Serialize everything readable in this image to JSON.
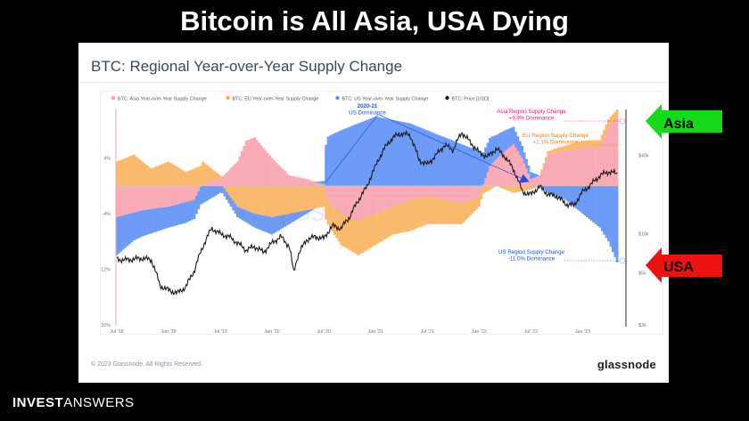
{
  "headline": "Bitcoin is All Asia, USA Dying",
  "card": {
    "title": "BTC: Regional Year-over-Year Supply Change",
    "copyright": "© 2023 Glassnode. All Rights Reserved.",
    "logo": "glassnode",
    "watermark": "glassnode"
  },
  "brand": {
    "part1": "INVEST",
    "part2": "ANSWERS"
  },
  "callouts": {
    "asia": "Asia",
    "usa": "USA"
  },
  "colors": {
    "asia": "#f7a1ad",
    "eu": "#f9b15b",
    "us": "#5b8ef5",
    "price": "#1a1a1a",
    "asia_text": "#e0157a",
    "eu_text": "#f07e0b",
    "us_text": "#2250d8",
    "arrow_green": "#16d91a",
    "arrow_red": "#ef1010"
  },
  "chart_data": {
    "type": "area",
    "legend": [
      {
        "name": "BTC: Asia Year-over-Year Supply Change",
        "color": "#f7a1ad"
      },
      {
        "name": "BTC: EU Year-over-Year Supply Change",
        "color": "#f9b15b"
      },
      {
        "name": "BTC: US Year-over-Year Supply Change",
        "color": "#5b8ef5"
      },
      {
        "name": "BTC: Price [USD]",
        "color": "#1a1a1a"
      }
    ],
    "x_ticks": [
      "Jul '18",
      "Jan '19",
      "Jul '19",
      "Jan '20",
      "Jul '20",
      "Jan '21",
      "Jul '21",
      "Jan '22",
      "Jul '22",
      "Jan '23"
    ],
    "x_tick_t": [
      0,
      6,
      12,
      18,
      24,
      30,
      36,
      42,
      48,
      54
    ],
    "x_range": [
      -0.2,
      58.5
    ],
    "y_left_ticks": [
      4,
      -4,
      -12,
      -20
    ],
    "y_left_tick_labels": [
      "4%",
      "-4%",
      "-12%",
      "-20%"
    ],
    "y_left_range": [
      -20,
      11
    ],
    "y_right_ticks": [
      40000,
      10000,
      5000,
      2000
    ],
    "y_right_tick_labels": [
      "$40k",
      "$10k",
      "$5k",
      "$2k"
    ],
    "y_right_range": [
      2000,
      90000
    ],
    "y_right_scale": "log",
    "series": [
      {
        "name": "BTC: Asia Year-over-Year Supply Change",
        "points": [
          [
            0,
            -4.5
          ],
          [
            3,
            -3.5
          ],
          [
            6,
            -3
          ],
          [
            9,
            -2
          ],
          [
            10,
            0.5
          ],
          [
            12,
            1
          ],
          [
            14,
            3.5
          ],
          [
            15,
            6.5
          ],
          [
            16,
            7
          ],
          [
            17,
            5.5
          ],
          [
            18,
            4
          ],
          [
            20,
            1.5
          ],
          [
            22,
            1
          ],
          [
            24,
            0.2
          ],
          [
            24.3,
            -2
          ],
          [
            26,
            -4
          ],
          [
            28,
            -5
          ],
          [
            30,
            -4
          ],
          [
            32,
            -3
          ],
          [
            34,
            -2
          ],
          [
            36,
            -1.5
          ],
          [
            38,
            -2
          ],
          [
            40,
            -2.5
          ],
          [
            42,
            -1.5
          ],
          [
            43.3,
            3
          ],
          [
            45,
            5
          ],
          [
            46,
            6
          ],
          [
            47,
            4
          ],
          [
            48,
            1
          ],
          [
            49,
            1.5
          ],
          [
            50,
            4.5
          ],
          [
            52,
            5
          ],
          [
            54,
            5.5
          ],
          [
            56,
            5.5
          ],
          [
            57,
            8.5
          ],
          [
            58,
            9.9
          ]
        ]
      },
      {
        "name": "BTC: EU Year-over-Year Supply Change",
        "points": [
          [
            0,
            3.5
          ],
          [
            2,
            4.5
          ],
          [
            4,
            2.5
          ],
          [
            6,
            3.5
          ],
          [
            8,
            2
          ],
          [
            10,
            3
          ],
          [
            12,
            0.5
          ],
          [
            14,
            -3
          ],
          [
            16,
            -4
          ],
          [
            18,
            -4.5
          ],
          [
            20,
            -4
          ],
          [
            22,
            -3.5
          ],
          [
            24,
            -3
          ],
          [
            26,
            -4.5
          ],
          [
            28,
            -5
          ],
          [
            30,
            -4.5
          ],
          [
            32,
            -4
          ],
          [
            34,
            -4.5
          ],
          [
            36,
            -4
          ],
          [
            38,
            -3.5
          ],
          [
            40,
            -3
          ],
          [
            42,
            -1.5
          ],
          [
            44,
            0
          ],
          [
            46,
            -1
          ],
          [
            48,
            -0.5
          ],
          [
            50,
            0.5
          ],
          [
            52,
            0.8
          ],
          [
            54,
            1
          ],
          [
            56,
            1.1
          ],
          [
            58,
            1.1
          ]
        ]
      },
      {
        "name": "BTC: US Year-over-Year Supply Change",
        "points": [
          [
            0,
            -5.5
          ],
          [
            2,
            -4
          ],
          [
            4,
            -3.5
          ],
          [
            6,
            -3
          ],
          [
            8,
            -3
          ],
          [
            10,
            -2.5
          ],
          [
            12,
            -1
          ],
          [
            14,
            -1.5
          ],
          [
            16,
            -2
          ],
          [
            18,
            -2.5
          ],
          [
            20,
            -1.5
          ],
          [
            22,
            -0.5
          ],
          [
            24,
            0.5
          ],
          [
            24.3,
            7
          ],
          [
            26,
            8
          ],
          [
            28,
            9
          ],
          [
            30,
            10
          ],
          [
            32,
            9.5
          ],
          [
            34,
            9
          ],
          [
            36,
            8
          ],
          [
            38,
            7
          ],
          [
            40,
            6
          ],
          [
            42,
            5
          ],
          [
            44,
            3.5
          ],
          [
            46,
            2.5
          ],
          [
            48,
            1
          ],
          [
            50,
            -1
          ],
          [
            52,
            -2
          ],
          [
            54,
            -4
          ],
          [
            56,
            -6
          ],
          [
            57,
            -8
          ],
          [
            58,
            -11
          ]
        ]
      },
      {
        "name": "BTC: Price [USD]",
        "points": [
          [
            0,
            6400
          ],
          [
            1,
            6300
          ],
          [
            3,
            6500
          ],
          [
            4,
            6300
          ],
          [
            5,
            4000
          ],
          [
            6,
            3700
          ],
          [
            7,
            3500
          ],
          [
            8,
            3900
          ],
          [
            9,
            5200
          ],
          [
            10,
            8000
          ],
          [
            11,
            11000
          ],
          [
            12,
            10000
          ],
          [
            13,
            9500
          ],
          [
            14,
            8500
          ],
          [
            15,
            7500
          ],
          [
            16,
            8000
          ],
          [
            17,
            7200
          ],
          [
            18,
            8500
          ],
          [
            19,
            9500
          ],
          [
            20,
            8000
          ],
          [
            20.5,
            5000
          ],
          [
            21,
            6800
          ],
          [
            22,
            9000
          ],
          [
            23,
            9500
          ],
          [
            24,
            9200
          ],
          [
            25,
            11500
          ],
          [
            26,
            11000
          ],
          [
            27,
            13500
          ],
          [
            28,
            18000
          ],
          [
            29,
            23000
          ],
          [
            30,
            33000
          ],
          [
            31,
            45000
          ],
          [
            32,
            55000
          ],
          [
            33,
            59000
          ],
          [
            34,
            57000
          ],
          [
            35,
            37000
          ],
          [
            36,
            34000
          ],
          [
            37,
            40000
          ],
          [
            38,
            48000
          ],
          [
            39,
            44000
          ],
          [
            40,
            60000
          ],
          [
            41,
            50000
          ],
          [
            42,
            42000
          ],
          [
            43,
            39000
          ],
          [
            44,
            45000
          ],
          [
            45,
            39000
          ],
          [
            46,
            31000
          ],
          [
            47,
            21000
          ],
          [
            48,
            20000
          ],
          [
            49,
            23000
          ],
          [
            50,
            20000
          ],
          [
            51,
            19500
          ],
          [
            52,
            17000
          ],
          [
            53,
            16500
          ],
          [
            54,
            21000
          ],
          [
            55,
            24000
          ],
          [
            56,
            28000
          ],
          [
            57,
            30000
          ],
          [
            58,
            29000
          ]
        ]
      }
    ],
    "annotations": [
      {
        "text_lines": [
          "2020-21",
          "US Dominance"
        ],
        "color": "#2250d8"
      },
      {
        "text_lines": [
          "Asia Region Supply Change",
          "+9.9% Dominance"
        ],
        "color": "#e0157a"
      },
      {
        "text_lines": [
          "EU Region Supply Change",
          "+1.1% Dominance"
        ],
        "color": "#f07e0b"
      },
      {
        "text_lines": [
          "US Region Supply Change",
          "-11.0% Dominance"
        ],
        "color": "#2250d8"
      }
    ]
  }
}
